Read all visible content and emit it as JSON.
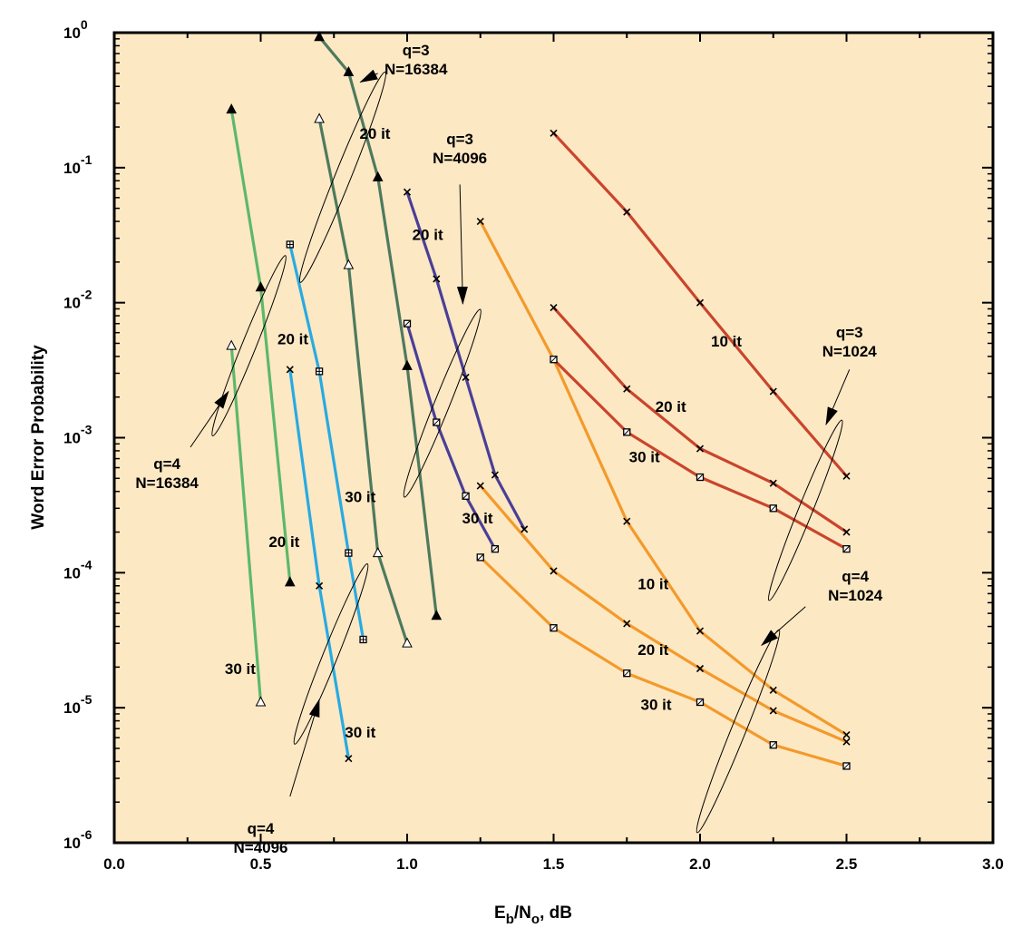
{
  "chart_data": {
    "type": "line",
    "title": "",
    "xlabel": {
      "main": "E",
      "sub1": "b",
      "mid": "/N",
      "sub2": "o",
      "tail": ", dB"
    },
    "ylabel": "Word Error Probability",
    "xlim": [
      0,
      3
    ],
    "ylim_log10": [
      -6,
      0
    ],
    "y_scale": "log",
    "grid": false,
    "background": "#fde8c4",
    "x_ticks": [
      "0.0",
      "0.5",
      "1.0",
      "1.5",
      "2.0",
      "2.5",
      "3.0"
    ],
    "x_tick_values": [
      0,
      0.5,
      1,
      1.5,
      2,
      2.5,
      3
    ],
    "y_ticks": [
      {
        "base": "10",
        "exp": "0",
        "value": 0
      },
      {
        "base": "10",
        "exp": "-1",
        "value": -1
      },
      {
        "base": "10",
        "exp": "-2",
        "value": -2
      },
      {
        "base": "10",
        "exp": "-3",
        "value": -3
      },
      {
        "base": "10",
        "exp": "-4",
        "value": -4
      },
      {
        "base": "10",
        "exp": "-5",
        "value": -5
      },
      {
        "base": "10",
        "exp": "-6",
        "value": -6
      }
    ],
    "series": [
      {
        "color": "#5db86a",
        "marker": "tri-filled",
        "x": [
          0.4,
          0.5,
          0.6
        ],
        "y": [
          0.27,
          0.013,
          8.5e-05
        ]
      },
      {
        "color": "#5db86a",
        "marker": "tri-open",
        "x": [
          0.4,
          0.5
        ],
        "y": [
          0.0048,
          1.1e-05
        ]
      },
      {
        "color": "#29aae1",
        "marker": "boxplus",
        "x": [
          0.6,
          0.7,
          0.8,
          0.85
        ],
        "y": [
          0.027,
          0.0031,
          0.00014,
          3.2e-05
        ]
      },
      {
        "color": "#29aae1",
        "marker": "x",
        "x": [
          0.6,
          0.7,
          0.8
        ],
        "y": [
          0.0032,
          8e-05,
          4.2e-06
        ]
      },
      {
        "color": "#4e7a5e",
        "marker": "tri-filled",
        "x": [
          0.7,
          0.8,
          0.9,
          1.0,
          1.1
        ],
        "y": [
          0.93,
          0.51,
          0.085,
          0.0034,
          4.8e-05
        ]
      },
      {
        "color": "#4e7a5e",
        "marker": "tri-open",
        "x": [
          0.7,
          0.8,
          0.9,
          1.0
        ],
        "y": [
          0.23,
          0.019,
          0.00014,
          3e-05
        ]
      },
      {
        "color": "#4a3f97",
        "marker": "x",
        "x": [
          1.0,
          1.1,
          1.2,
          1.3,
          1.4
        ],
        "y": [
          0.066,
          0.015,
          0.0028,
          0.00053,
          0.00021
        ]
      },
      {
        "color": "#4a3f97",
        "marker": "box",
        "x": [
          1.0,
          1.1,
          1.2,
          1.3
        ],
        "y": [
          0.007,
          0.0013,
          0.00037,
          0.00015
        ]
      },
      {
        "color": "#f39a2b",
        "marker": "x",
        "x": [
          1.25,
          1.5,
          1.75,
          2.0,
          2.25,
          2.5
        ],
        "y": [
          0.04,
          0.0038,
          0.00024,
          3.7e-05,
          1.35e-05,
          6.3e-06
        ]
      },
      {
        "color": "#f39a2b",
        "marker": "x",
        "x": [
          1.25,
          1.5,
          1.75,
          2.0,
          2.25,
          2.5
        ],
        "y": [
          0.00044,
          0.000103,
          4.2e-05,
          1.95e-05,
          9.5e-06,
          5.6e-06
        ]
      },
      {
        "color": "#f39a2b",
        "marker": "box",
        "x": [
          1.25,
          1.5,
          1.75,
          2.0,
          2.25,
          2.5
        ],
        "y": [
          0.00013,
          3.9e-05,
          1.8e-05,
          1.1e-05,
          5.3e-06,
          3.7e-06
        ]
      },
      {
        "color": "#c9452c",
        "marker": "x",
        "x": [
          1.5,
          1.75,
          2.0,
          2.25,
          2.5
        ],
        "y": [
          0.18,
          0.047,
          0.01,
          0.0022,
          0.00052
        ]
      },
      {
        "color": "#c9452c",
        "marker": "x",
        "x": [
          1.5,
          1.75,
          2.0,
          2.25,
          2.5
        ],
        "y": [
          0.0092,
          0.0023,
          0.00083,
          0.00046,
          0.0002
        ]
      },
      {
        "color": "#c9452c",
        "marker": "box",
        "x": [
          1.5,
          1.75,
          2.0,
          2.25,
          2.5
        ],
        "y": [
          0.0038,
          0.0011,
          0.00051,
          0.0003,
          0.00015
        ]
      }
    ],
    "annotations": [
      {
        "text": "10 it",
        "x": 2.09,
        "y": 0.0052
      },
      {
        "text": "20 it",
        "x": 1.9,
        "y": 0.0017
      },
      {
        "text": "30 it",
        "x": 1.81,
        "y": 0.00072
      },
      {
        "text": "10 it",
        "x": 1.84,
        "y": 8.3e-05
      },
      {
        "text": "20 it",
        "x": 1.84,
        "y": 2.7e-05
      },
      {
        "text": "30 it",
        "x": 1.85,
        "y": 1.06e-05
      },
      {
        "text": "20 it",
        "x": 1.07,
        "y": 0.032
      },
      {
        "text": "30 it",
        "x": 1.24,
        "y": 0.000255
      },
      {
        "text": "20 it",
        "x": 0.89,
        "y": 0.18
      },
      {
        "text": "30 it",
        "x": 0.84,
        "y": 0.000365
      },
      {
        "text": "20 it",
        "x": 0.61,
        "y": 0.0054
      },
      {
        "text": "30 it",
        "x": 0.84,
        "y": 6.6e-06
      },
      {
        "text": "20 it",
        "x": 0.58,
        "y": 0.00017
      },
      {
        "text": "30 it",
        "x": 0.43,
        "y": 1.95e-05
      }
    ],
    "callouts": [
      {
        "line1": "q=3",
        "line2": "N=16384",
        "lx": 1.03,
        "ly": 0.64,
        "ax1": 0.9,
        "ay1": 0.5,
        "ax2": 0.84,
        "ay2": 0.43,
        "ex": 0.78,
        "ey": 0.085,
        "erx": 0.027,
        "ery": 0.84,
        "erot": 22
      },
      {
        "line1": "q=3",
        "line2": "N=4096",
        "lx": 1.18,
        "ly": 0.14,
        "ax1": 1.18,
        "ay1": 0.075,
        "ax2": 1.19,
        "ay2": 0.0098,
        "ex": 1.12,
        "ey": 0.0018,
        "erx": 0.026,
        "ery": 0.75,
        "erot": 22
      },
      {
        "line1": "q=3",
        "line2": "N=1024",
        "lx": 2.51,
        "ly": 0.0052,
        "ax1": 2.51,
        "ay1": 0.0032,
        "ax2": 2.43,
        "ay2": 0.00125,
        "ex": 2.36,
        "ey": 0.00029,
        "erx": 0.024,
        "ery": 0.72,
        "erot": 22
      },
      {
        "line1": "q=4",
        "line2": "N=1024",
        "lx": 2.53,
        "ly": 8.1e-05,
        "ax1": 2.36,
        "ay1": 5.6e-05,
        "ax2": 2.21,
        "ay2": 2.9e-05,
        "ex": 2.13,
        "ey": 6.7e-06,
        "erx": 0.025,
        "ery": 0.81,
        "erot": 22
      },
      {
        "line1": "q=4",
        "line2": "N=16384",
        "lx": 0.18,
        "ly": 0.00055,
        "ax1": 0.26,
        "ay1": 0.00085,
        "ax2": 0.39,
        "ay2": 0.0022,
        "ex": 0.46,
        "ey": 0.0048,
        "erx": 0.024,
        "ery": 0.72,
        "erot": 22
      },
      {
        "line1": "q=4",
        "line2": "N=4096",
        "lx": 0.5,
        "ly": 1.1e-06,
        "ax1": 0.6,
        "ay1": 2.2e-06,
        "ax2": 0.7,
        "ay2": 1.15e-05,
        "ex": 0.74,
        "ey": 2.5e-05,
        "erx": 0.025,
        "ery": 0.72,
        "erot": 22
      }
    ]
  }
}
